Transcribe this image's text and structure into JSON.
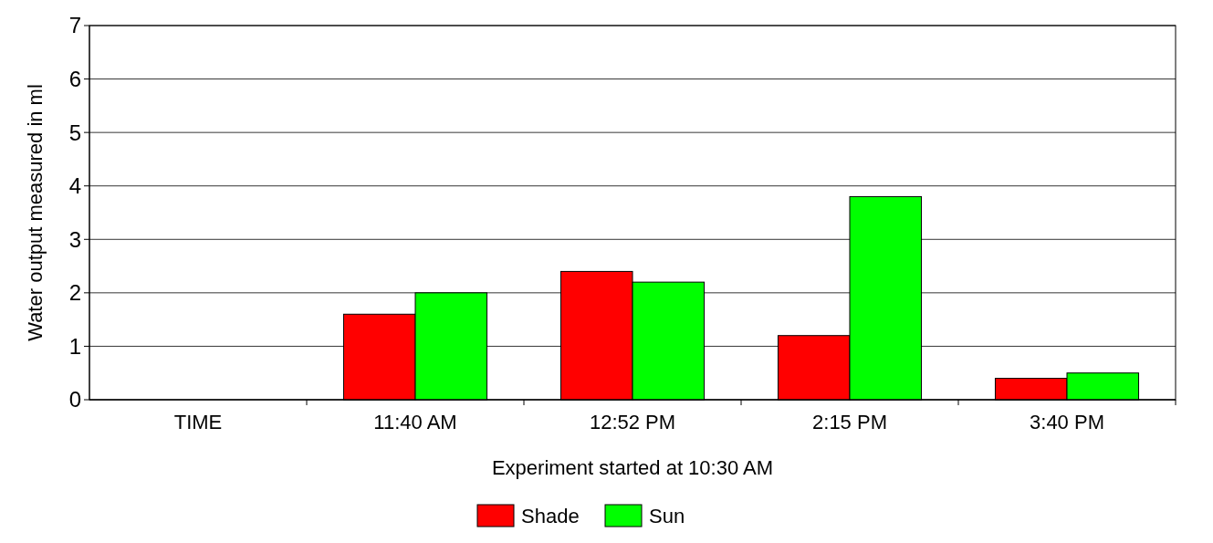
{
  "chart_data": {
    "type": "bar",
    "xlabel": "Experiment started at 10:30 AM",
    "ylabel": "Water output measured in ml",
    "categories": [
      "TIME",
      "11:40 AM",
      "12:52 PM",
      "2:15 PM",
      "3:40 PM"
    ],
    "series": [
      {
        "name": "Shade",
        "color": "#ff0000",
        "values": [
          null,
          1.6,
          2.4,
          1.2,
          0.4
        ]
      },
      {
        "name": "Sun",
        "color": "#00ff00",
        "values": [
          null,
          2.0,
          2.2,
          3.8,
          0.5
        ]
      }
    ],
    "ylim": [
      0,
      7
    ],
    "yticks": [
      0,
      1,
      2,
      3,
      4,
      5,
      6,
      7
    ],
    "grid": "y",
    "legend": "bottom"
  }
}
